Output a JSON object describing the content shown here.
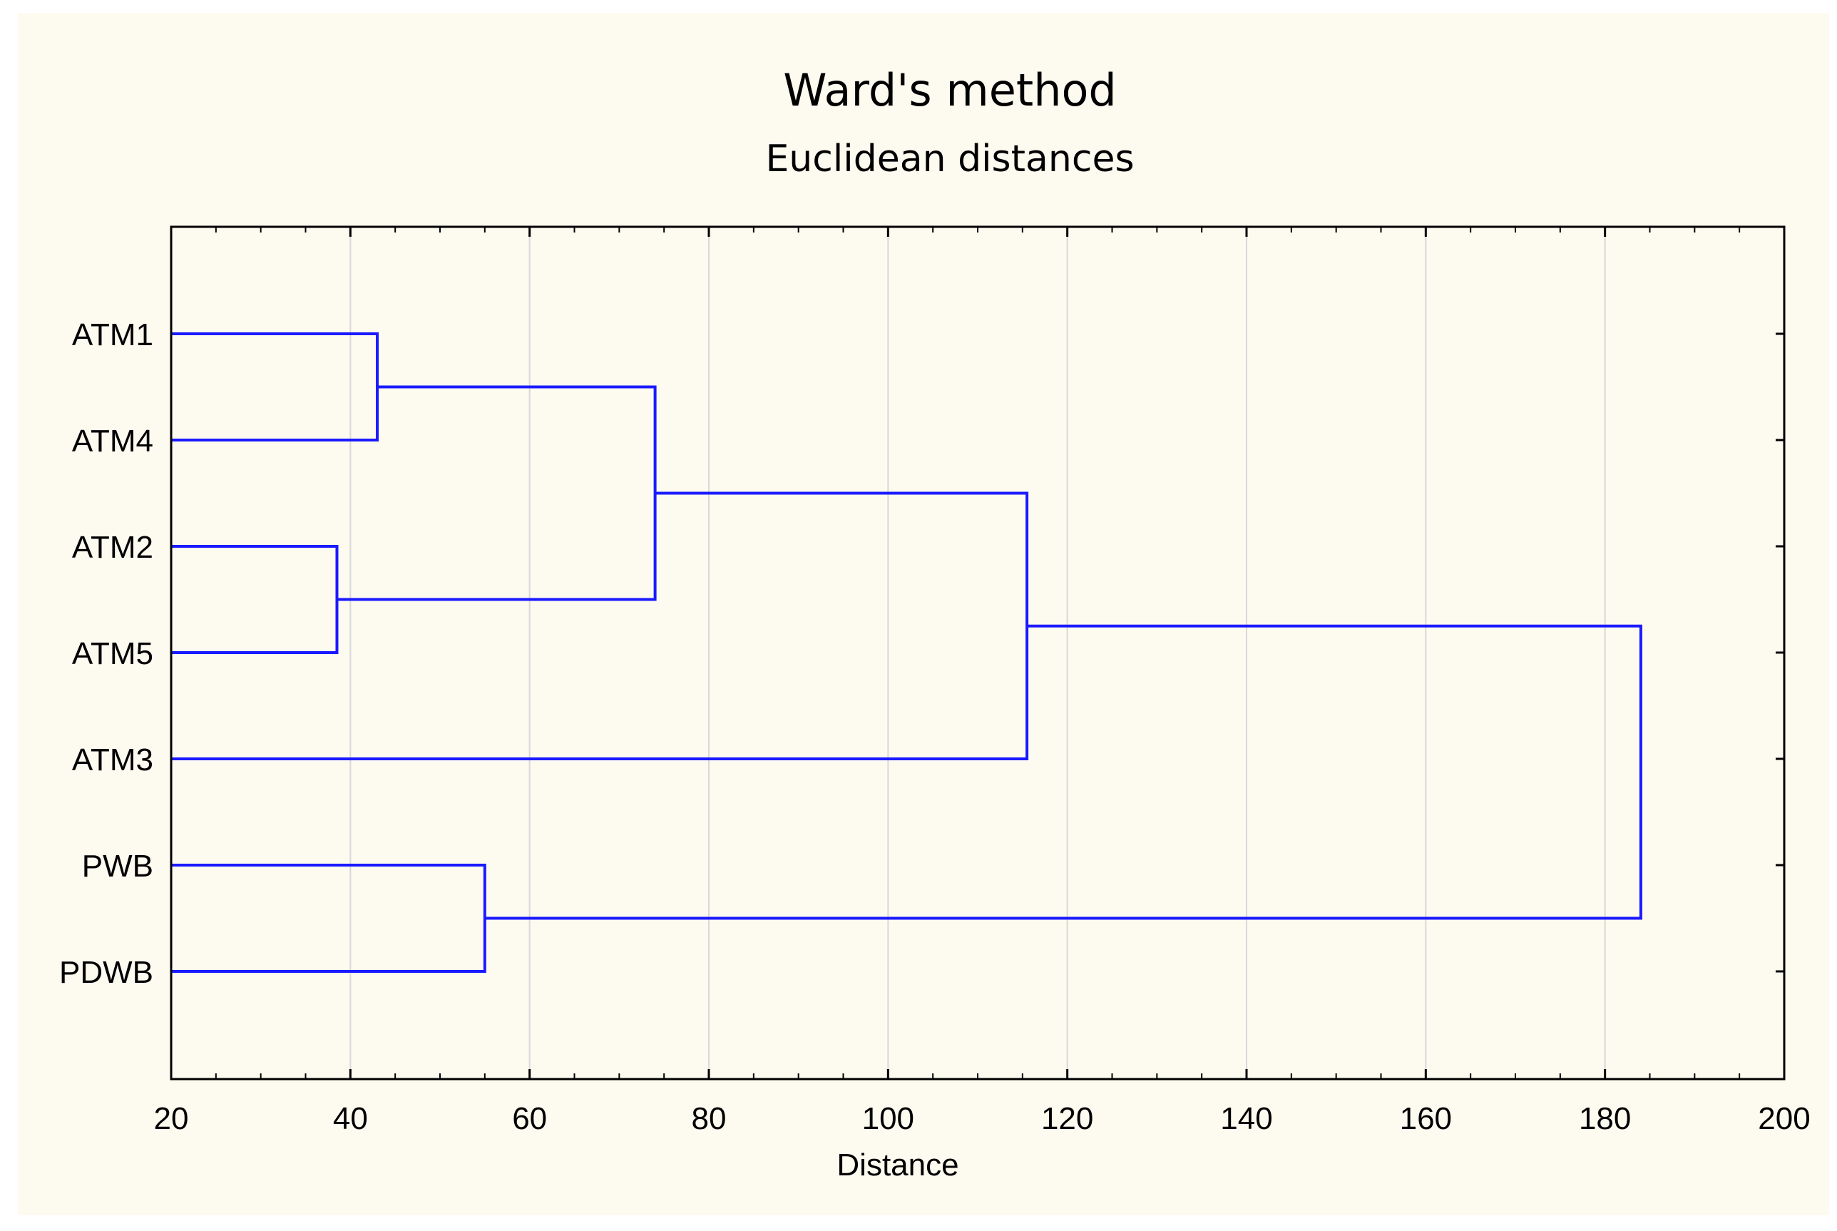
{
  "chart_data": {
    "type": "dendrogram",
    "title": "Ward's method",
    "subtitle": "Euclidean distances",
    "xlabel": "Distance",
    "xlim": [
      20,
      200
    ],
    "xticks": [
      20,
      40,
      60,
      80,
      100,
      120,
      140,
      160,
      180,
      200
    ],
    "grid_x": true,
    "leaves": [
      "ATM1",
      "ATM4",
      "ATM2",
      "ATM5",
      "ATM3",
      "PWB",
      "PDWB"
    ],
    "merges": [
      {
        "left": "ATM2",
        "right": "ATM5",
        "distance": 38.5
      },
      {
        "left": "ATM1",
        "right": "ATM4",
        "distance": 43
      },
      {
        "left": "PWB",
        "right": "PDWB",
        "distance": 55
      },
      {
        "left": "ATM1+ATM4",
        "right": "ATM2+ATM5",
        "distance": 74
      },
      {
        "left": "ATM1+ATM4+ATM2+ATM5",
        "right": "ATM3",
        "distance": 115.5
      },
      {
        "left": "ATM1+ATM4+ATM2+ATM5+ATM3",
        "right": "PWB+PDWB",
        "distance": 184
      }
    ],
    "line_color": "#1a1aff",
    "grid_color": "#d8d8d8",
    "background_color": "#fdfaf0"
  }
}
